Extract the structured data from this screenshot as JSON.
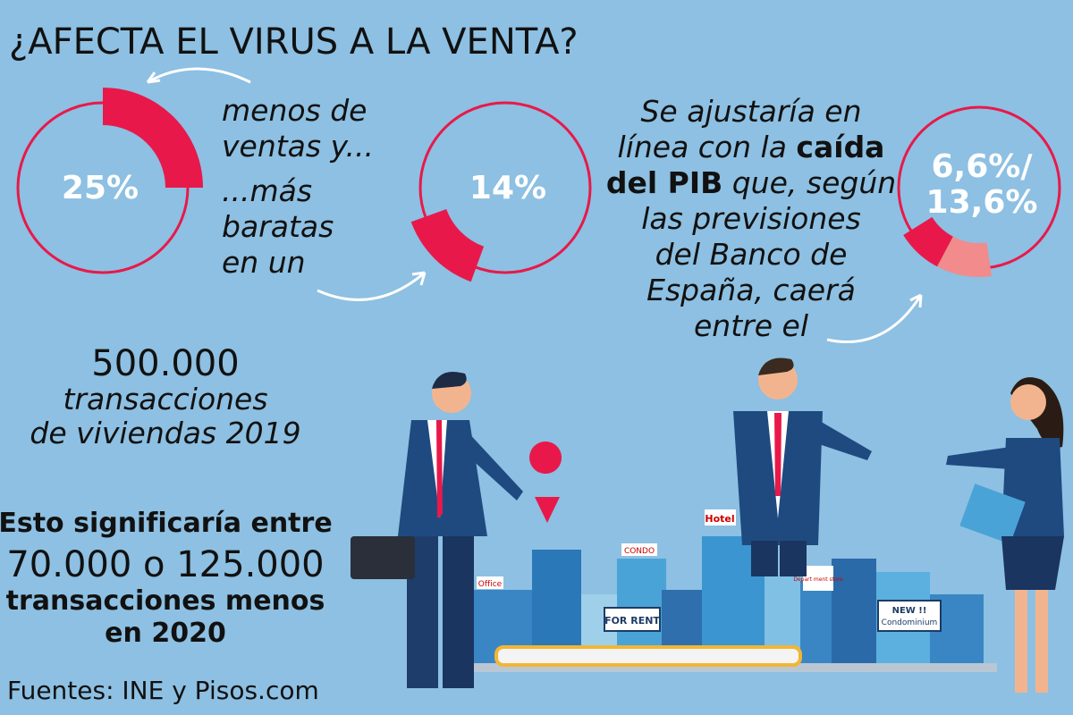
{
  "header": {
    "title": "¿AFECTA EL VIRUS A LA VENTA?"
  },
  "rings": [
    {
      "label": "25%"
    },
    {
      "label": "14%"
    },
    {
      "label": [
        "6,6%/",
        "13,6%"
      ]
    }
  ],
  "caption_left": {
    "lines": [
      "menos de",
      "ventas y...",
      "...más",
      "baratas",
      "en un"
    ]
  },
  "caption_right": {
    "lines": [
      [
        "Se ajustaría en"
      ],
      [
        "línea con la ",
        "caída"
      ],
      [
        "del PIB",
        " que, según"
      ],
      [
        "las previsiones"
      ],
      [
        "del Banco de"
      ],
      [
        "España, caerá"
      ],
      [
        "entre el"
      ]
    ]
  },
  "stats": {
    "number": "500.000",
    "lines": [
      "transacciones",
      "de viviendas  2019"
    ]
  },
  "conclusion": {
    "lines": [
      "Esto significaría entre",
      "70.000 o 125.000",
      "transacciones menos",
      "en 2020"
    ]
  },
  "footer": {
    "source": "Fuentes: INE y Pisos.com"
  },
  "illustration": {
    "signs": [
      "Office",
      "CONDO",
      "Hotel",
      "FOR RENT",
      "Depart ment store",
      "NEW !!",
      "Condominium"
    ]
  }
}
